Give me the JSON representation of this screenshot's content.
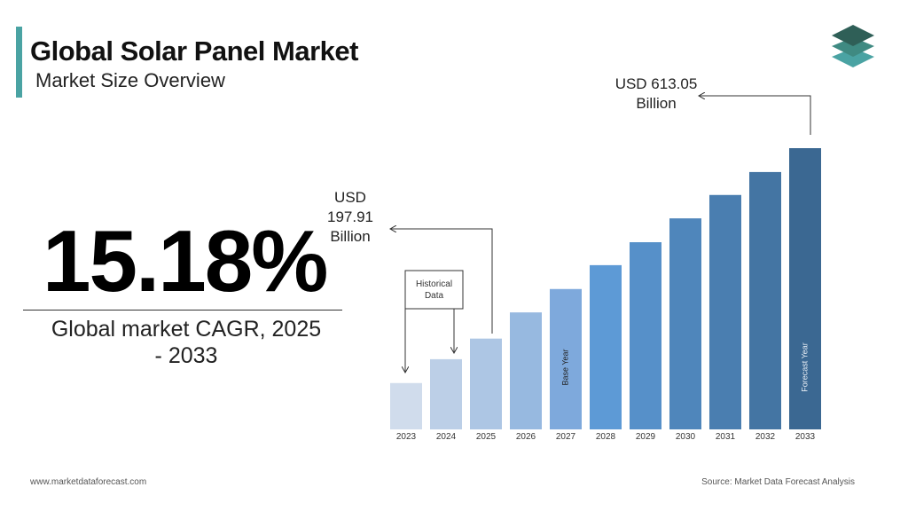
{
  "header": {
    "title": "Global Solar Panel Market",
    "subtitle": "Market Size Overview"
  },
  "highlight": {
    "headline": "15.18%",
    "caption": "Global market CAGR, 2025 - 2033"
  },
  "chart_data": {
    "type": "bar",
    "categories": [
      "2023",
      "2024",
      "2025",
      "2026",
      "2027",
      "2028",
      "2029",
      "2030",
      "2031",
      "2032",
      "2033"
    ],
    "values": [
      101,
      153,
      197.91,
      255,
      306,
      358,
      408,
      460,
      511,
      561,
      613.05
    ],
    "value_labels": [
      null,
      null,
      "USD 197.91 Billion",
      null,
      null,
      null,
      null,
      null,
      null,
      null,
      "USD 613.05 Billion"
    ],
    "colors": [
      "#d0dcec",
      "#bccfe7",
      "#adc6e4",
      "#97b9e0",
      "#7ea9dc",
      "#5d9ad6",
      "#5690c9",
      "#4f86bb",
      "#4a7eb0",
      "#4475a3",
      "#3b6892"
    ],
    "annotations": {
      "historical": "Historical Data",
      "base_year": "Base Year",
      "forecast_year": "Forecast Year"
    }
  },
  "footer": {
    "website": "www.marketdataforecast.com",
    "source": "Source: Market Data Forecast Analysis"
  }
}
